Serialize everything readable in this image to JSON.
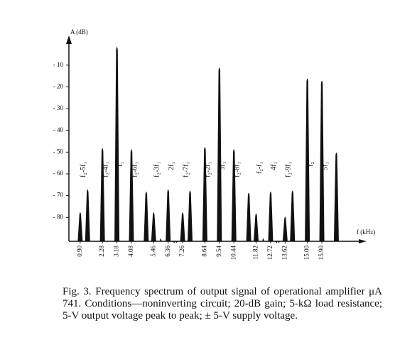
{
  "chart_data": {
    "type": "spike",
    "y_label": "A (dB)",
    "x_label": "f (kHz)",
    "x": [
      0.9,
      1.36,
      2.28,
      3.18,
      4.08,
      5.0,
      5.46,
      5.9,
      6.36,
      6.8,
      7.26,
      7.72,
      8.64,
      9.54,
      10.44,
      11.36,
      11.82,
      12.26,
      12.72,
      13.16,
      13.62,
      14.08,
      15.0,
      15.9,
      16.8
    ],
    "values": [
      -77,
      -66.5,
      -47.5,
      -1,
      -48,
      -67.5,
      -77,
      -89,
      -66.5,
      -90,
      -77,
      -67,
      -47,
      -10.5,
      -48,
      -68,
      -77.5,
      -89,
      -67.5,
      -90,
      -79,
      -67,
      -15.5,
      -16.5,
      -49.5
    ],
    "peak_labels": [
      "f₂-5f₁",
      null,
      "f₂-4f₁",
      "f₁",
      "f₂-6f₁",
      null,
      "f₂-3f₁",
      null,
      "2f₁",
      null,
      "f₂-7f₁",
      null,
      "f₂-2f₁",
      "3f₁",
      "f₂-8f₁",
      null,
      "f₂-f₁",
      null,
      "4f₁",
      null,
      "f₂-9f₁",
      null,
      "f₂",
      "5f₁",
      null
    ],
    "color": "#111111",
    "xlim": [
      0.2,
      18.5
    ],
    "ylim": [
      -91,
      2
    ],
    "xticks": [
      {
        "value": 0.9,
        "label": "0.90"
      },
      2.28,
      3.18,
      4.08,
      5.46,
      6.36,
      7.26,
      8.64,
      9.54,
      10.44,
      11.82,
      12.72,
      13.62,
      {
        "value": 15,
        "label": "15.00"
      },
      {
        "value": 15.9,
        "label": "15.90"
      }
    ],
    "yticks": [
      {
        "value": -10,
        "label": "- 10"
      },
      {
        "value": -20,
        "label": "- 20"
      },
      {
        "value": -30,
        "label": "- 30"
      },
      {
        "value": -40,
        "label": "- 40"
      },
      {
        "value": -50,
        "label": "- 50"
      },
      {
        "value": -60,
        "label": "- 60"
      },
      {
        "value": -70,
        "label": "- 70"
      },
      {
        "value": -80,
        "label": "- 80"
      }
    ],
    "caption": "Fig. 3. Frequency spectrum of output signal of operational amplifier μA 741. Conditions—noninverting circuit; 20-dB gain; 5-kΩ load resistance; 5-V output voltage peak to peak; ± 5-V supply voltage."
  }
}
